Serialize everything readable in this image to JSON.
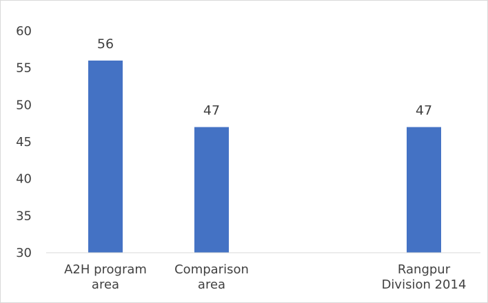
{
  "chart_data": {
    "type": "bar",
    "categories": [
      [
        "A2H program",
        "area"
      ],
      [
        "Comparison",
        "area"
      ],
      [
        "Rangpur",
        "Division 2014"
      ]
    ],
    "values": [
      56,
      47,
      47
    ],
    "data_labels": [
      "56",
      "47",
      "47"
    ],
    "ylim": [
      30,
      60
    ],
    "yticks": [
      30,
      35,
      40,
      45,
      50,
      55,
      60
    ],
    "bar_color": "#4472c4",
    "grid": false,
    "legend": "none"
  }
}
